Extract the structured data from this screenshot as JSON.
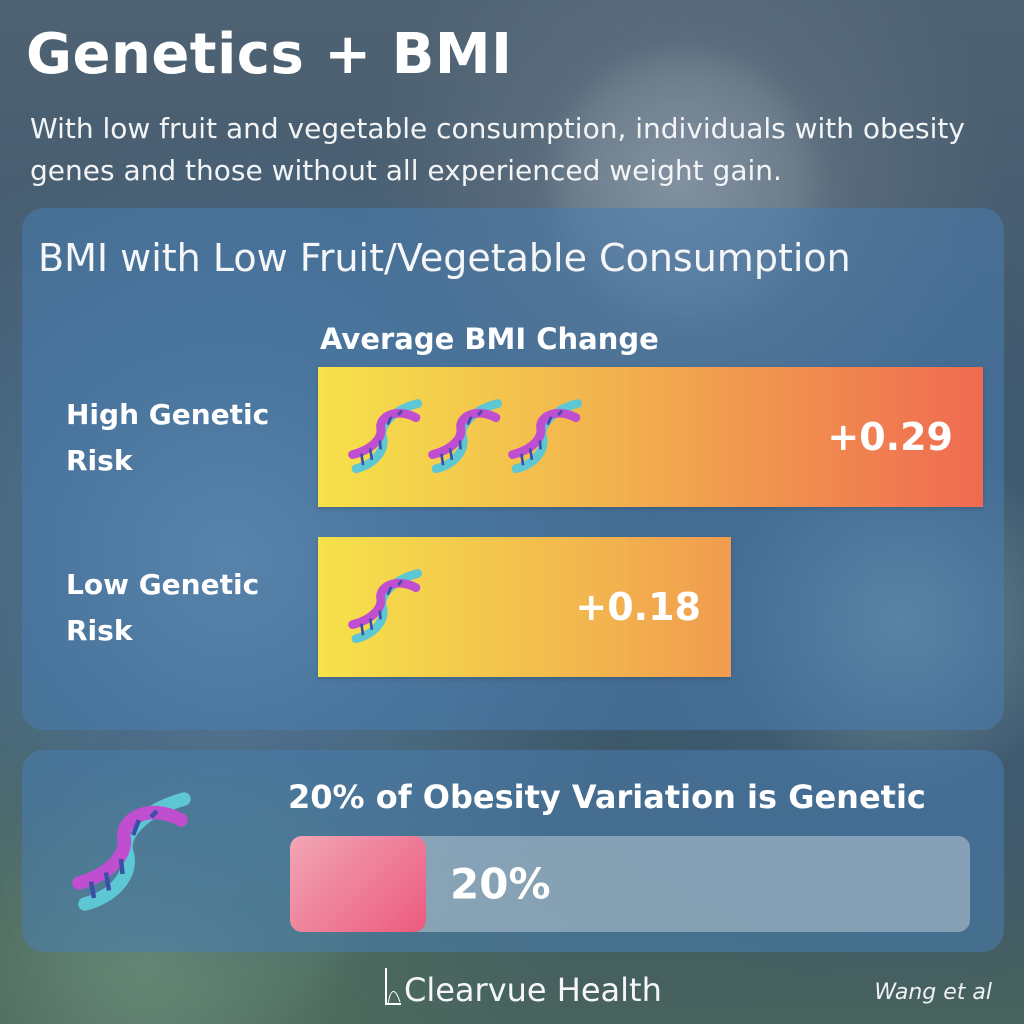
{
  "title": "Genetics + BMI",
  "subtitle": "With low fruit and vegetable consumption, individuals with obesity genes and those without all experienced weight gain.",
  "chart_data": {
    "type": "bar",
    "title": "BMI with Low Fruit/Vegetable Consumption",
    "value_header": "Average BMI Change",
    "orientation": "horizontal",
    "categories": [
      "High Genetic Risk",
      "Low Genetic Risk"
    ],
    "values": [
      0.29,
      0.18
    ],
    "value_labels": [
      "+0.29",
      "+0.18"
    ],
    "icon_counts": [
      3,
      1
    ],
    "xlim": [
      0,
      0.29
    ],
    "grid": false,
    "colors": [
      "#f6e24a",
      "#ef6a50"
    ]
  },
  "stat": {
    "title": "20% of Obesity Variation is Genetic",
    "value": 0.2,
    "value_label": "20%",
    "icon": "dna-icon",
    "fill_color": "#ec5a7e"
  },
  "footer": {
    "brand": "Clearvue Health",
    "brand_icon": "clearvue-logo-icon",
    "source": "Wang et al"
  }
}
